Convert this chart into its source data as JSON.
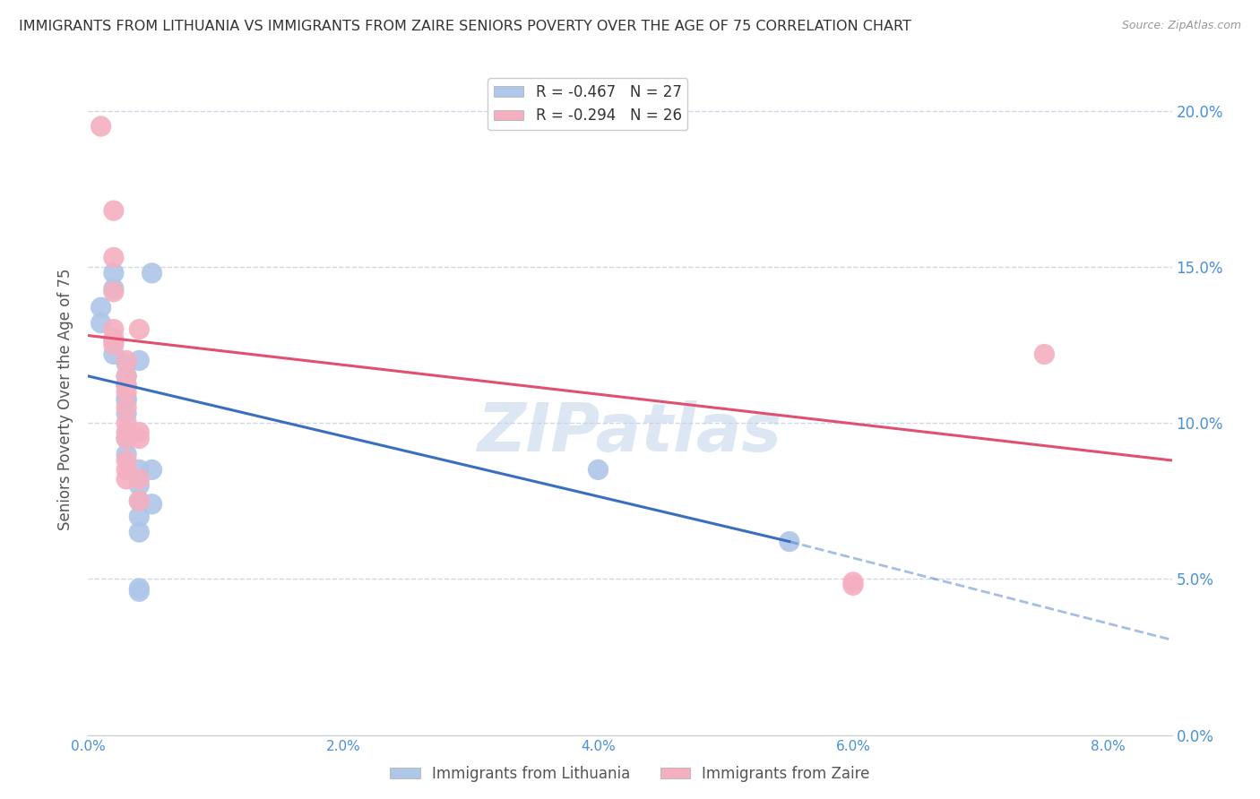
{
  "title": "IMMIGRANTS FROM LITHUANIA VS IMMIGRANTS FROM ZAIRE SENIORS POVERTY OVER THE AGE OF 75 CORRELATION CHART",
  "source": "Source: ZipAtlas.com",
  "ylabel": "Seniors Poverty Over the Age of 75",
  "x_tick_labels": [
    "0.0%",
    "2.0%",
    "4.0%",
    "6.0%",
    "8.0%"
  ],
  "y_tick_labels": [
    "0.0%",
    "5.0%",
    "10.0%",
    "15.0%",
    "20.0%"
  ],
  "xlim": [
    0.0,
    0.085
  ],
  "ylim": [
    0.0,
    0.215
  ],
  "lithuania_points": [
    [
      0.001,
      0.137
    ],
    [
      0.001,
      0.132
    ],
    [
      0.002,
      0.148
    ],
    [
      0.002,
      0.143
    ],
    [
      0.002,
      0.126
    ],
    [
      0.002,
      0.122
    ],
    [
      0.003,
      0.119
    ],
    [
      0.003,
      0.115
    ],
    [
      0.003,
      0.112
    ],
    [
      0.003,
      0.108
    ],
    [
      0.003,
      0.107
    ],
    [
      0.003,
      0.103
    ],
    [
      0.003,
      0.095
    ],
    [
      0.003,
      0.09
    ],
    [
      0.004,
      0.12
    ],
    [
      0.004,
      0.085
    ],
    [
      0.004,
      0.08
    ],
    [
      0.004,
      0.075
    ],
    [
      0.004,
      0.07
    ],
    [
      0.004,
      0.065
    ],
    [
      0.004,
      0.047
    ],
    [
      0.004,
      0.046
    ],
    [
      0.005,
      0.148
    ],
    [
      0.005,
      0.085
    ],
    [
      0.005,
      0.074
    ],
    [
      0.04,
      0.085
    ],
    [
      0.055,
      0.062
    ]
  ],
  "zaire_points": [
    [
      0.001,
      0.195
    ],
    [
      0.002,
      0.168
    ],
    [
      0.002,
      0.153
    ],
    [
      0.002,
      0.142
    ],
    [
      0.002,
      0.13
    ],
    [
      0.002,
      0.127
    ],
    [
      0.002,
      0.125
    ],
    [
      0.003,
      0.12
    ],
    [
      0.003,
      0.115
    ],
    [
      0.003,
      0.112
    ],
    [
      0.003,
      0.11
    ],
    [
      0.003,
      0.105
    ],
    [
      0.003,
      0.1
    ],
    [
      0.003,
      0.097
    ],
    [
      0.003,
      0.095
    ],
    [
      0.003,
      0.088
    ],
    [
      0.003,
      0.085
    ],
    [
      0.003,
      0.082
    ],
    [
      0.004,
      0.13
    ],
    [
      0.004,
      0.097
    ],
    [
      0.004,
      0.095
    ],
    [
      0.004,
      0.082
    ],
    [
      0.004,
      0.075
    ],
    [
      0.06,
      0.049
    ],
    [
      0.06,
      0.048
    ],
    [
      0.075,
      0.122
    ]
  ],
  "lithuania_line_solid": {
    "x": [
      0.0,
      0.055
    ],
    "y": [
      0.115,
      0.062
    ]
  },
  "lithuania_line_dashed": {
    "x": [
      0.055,
      0.095
    ],
    "y": [
      0.062,
      0.02
    ]
  },
  "zaire_line": {
    "x": [
      0.0,
      0.085
    ],
    "y": [
      0.128,
      0.088
    ]
  },
  "dot_size": 280,
  "lithuania_color": "#aec6e8",
  "zaire_color": "#f4b0c0",
  "lithuania_line_color": "#3a6fbf",
  "zaire_line_color": "#e05070",
  "watermark": "ZIPatlas",
  "background_color": "#ffffff",
  "grid_color": "#d0d8e8",
  "axis_label_color": "#4a90d9",
  "title_color": "#333333",
  "legend1_label": "R = -0.467   N = 27",
  "legend2_label": "R = -0.294   N = 26",
  "bottom_legend1": "Immigrants from Lithuania",
  "bottom_legend2": "Immigrants from Zaire"
}
